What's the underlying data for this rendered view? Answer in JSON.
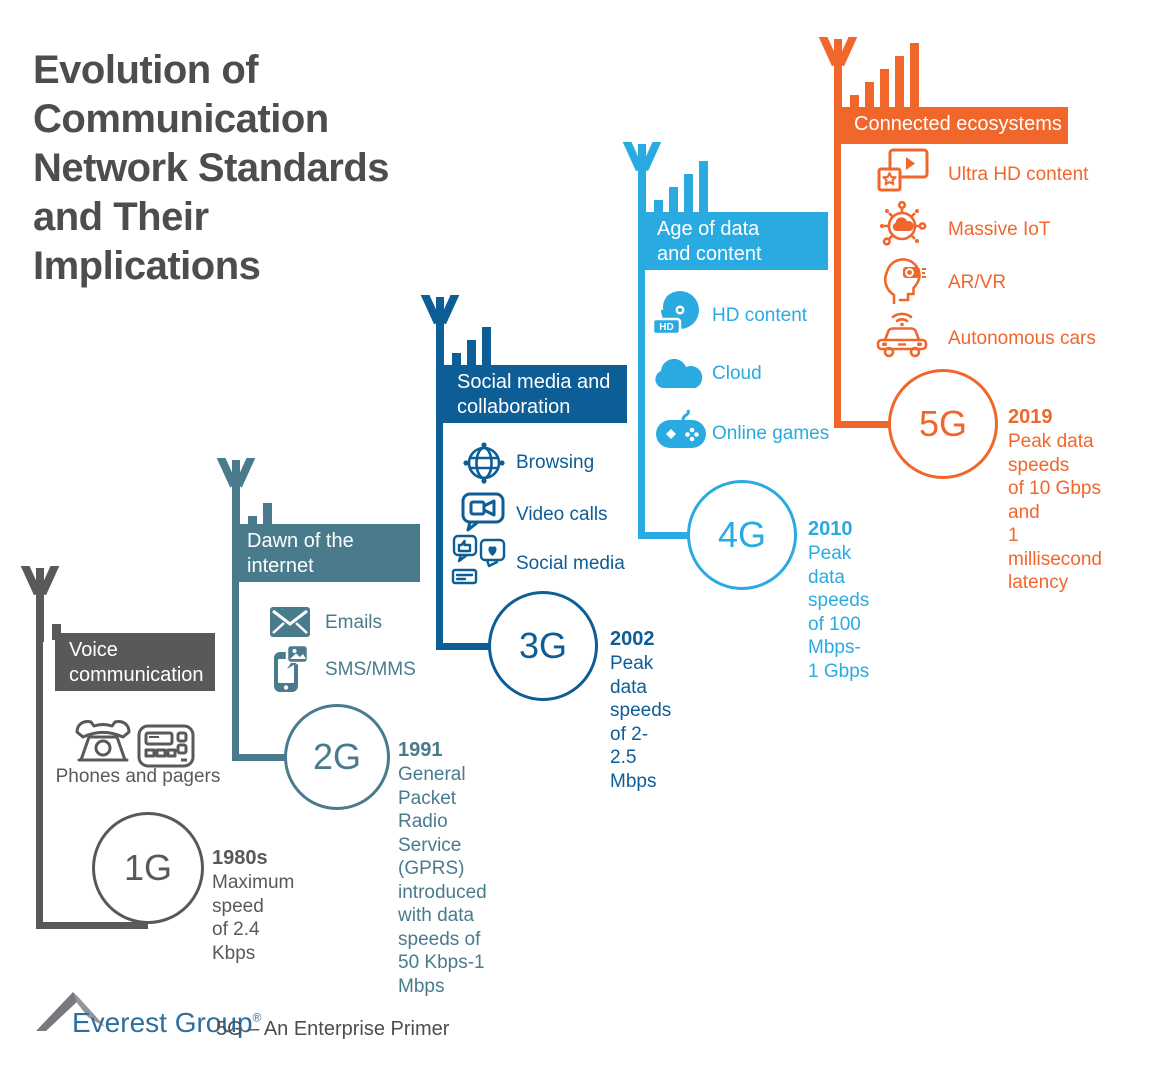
{
  "title": {
    "lines": [
      "Evolution of",
      "Communication",
      "Network Standards",
      "and Their",
      "Implications"
    ],
    "color": "#4D4D4F"
  },
  "sections": [
    {
      "id": "1g",
      "generation": "1G",
      "color": "#595959",
      "header_lines": [
        "Voice",
        "communication"
      ],
      "antenna_icon": "antenna-1-bar-icon",
      "devices": {
        "icons": [
          {
            "name": "rotary-phone-icon"
          },
          {
            "name": "pager-icon"
          }
        ],
        "caption": "Phones and pagers"
      },
      "year": "1980s",
      "description_lines": [
        "Maximum speed",
        "of 2.4 Kbps"
      ]
    },
    {
      "id": "2g",
      "generation": "2G",
      "color": "#497B8D",
      "header_lines": [
        "Dawn of the",
        "internet"
      ],
      "antenna_icon": "antenna-2-bars-icon",
      "items": [
        {
          "icon": "envelope-icon",
          "label": "Emails"
        },
        {
          "icon": "sms-icon",
          "label": "SMS/MMS"
        }
      ],
      "year": "1991",
      "description_lines": [
        "General Packet Radio Service",
        "(GPRS) introduced with data",
        "speeds of 50 Kbps-1 Mbps"
      ]
    },
    {
      "id": "3g",
      "generation": "3G",
      "color": "#0D5D96",
      "header_lines": [
        "Social media and",
        "collaboration"
      ],
      "antenna_icon": "antenna-3-bars-icon",
      "items": [
        {
          "icon": "globe-icon",
          "label": "Browsing"
        },
        {
          "icon": "video-call-icon",
          "label": "Video calls"
        },
        {
          "icon": "social-media-icon",
          "label": "Social media"
        }
      ],
      "year": "2002",
      "description_lines": [
        "Peak data speeds",
        "of 2-2.5 Mbps"
      ]
    },
    {
      "id": "4g",
      "generation": "4G",
      "color": "#29ABE2",
      "header_lines": [
        "Age of data",
        "and content"
      ],
      "antenna_icon": "antenna-4-bars-icon",
      "items": [
        {
          "icon": "hd-content-icon",
          "label": "HD content"
        },
        {
          "icon": "cloud-icon",
          "label": "Cloud"
        },
        {
          "icon": "gamepad-icon",
          "label": "Online games"
        }
      ],
      "year": "2010",
      "description_lines": [
        "Peak data speeds",
        "of 100 Mbps-1 Gbps"
      ]
    },
    {
      "id": "5g",
      "generation": "5G",
      "color": "#F1662B",
      "header_lines": [
        "Connected ecosystems"
      ],
      "antenna_icon": "antenna-5-bars-icon",
      "items": [
        {
          "icon": "ultra-hd-icon",
          "label": "Ultra HD content"
        },
        {
          "icon": "iot-icon",
          "label": "Massive IoT"
        },
        {
          "icon": "ar-vr-icon",
          "label": "AR/VR"
        },
        {
          "icon": "car-icon",
          "label": "Autonomous cars"
        }
      ],
      "year": "2019",
      "description_lines": [
        "Peak data speeds",
        "of 10 Gbps and",
        "1 millisecond",
        "latency"
      ]
    }
  ],
  "footer": {
    "brand": "Everest Group",
    "registered_mark": "®",
    "caption": "5G – An Enterprise Primer",
    "brand_color": "#2D6F9F"
  }
}
